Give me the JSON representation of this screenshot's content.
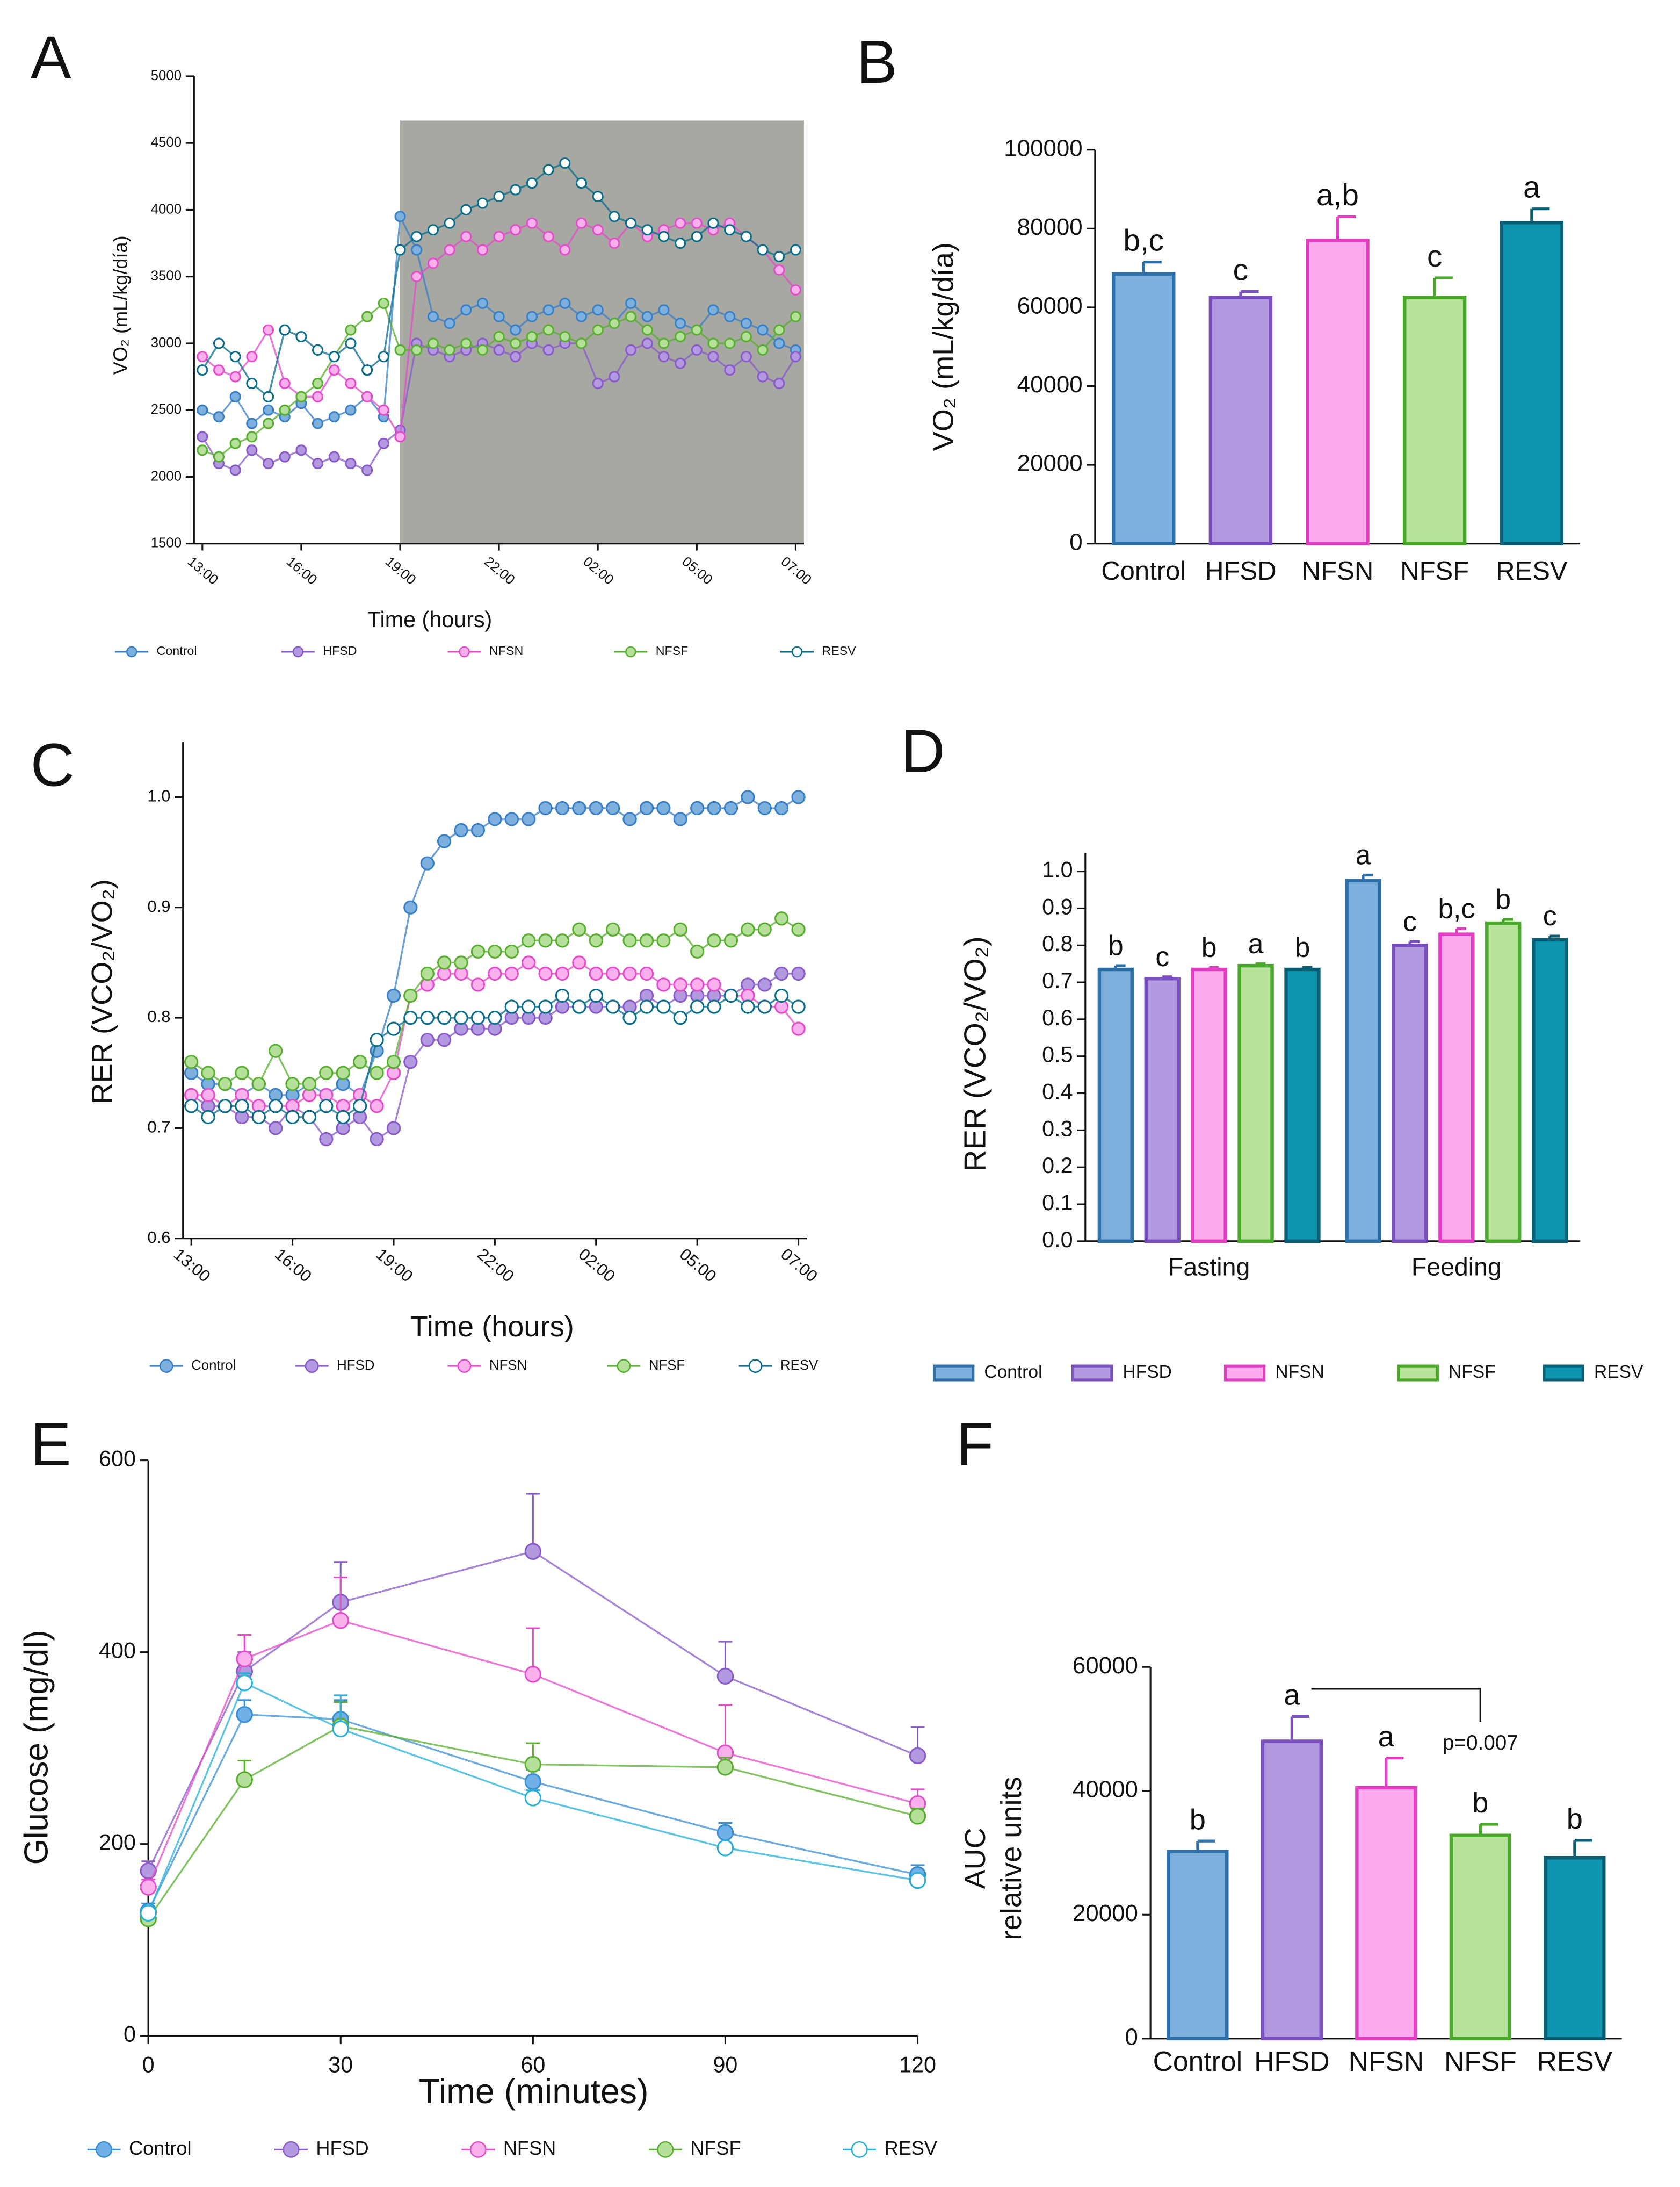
{
  "chart_data": [
    {
      "panel": "A",
      "type": "line",
      "ylabel": "VO₂ (mL/kg/día)",
      "xlabel": "Time (hours)",
      "categories": [
        "13:00",
        null,
        null,
        null,
        null,
        null,
        "16:00",
        null,
        null,
        null,
        null,
        null,
        "19:00",
        null,
        null,
        null,
        null,
        null,
        "22:00",
        null,
        null,
        null,
        null,
        null,
        "02:00",
        null,
        null,
        null,
        null,
        null,
        "05:00",
        null,
        null,
        null,
        null,
        null,
        "07:00"
      ],
      "ylim": [
        1500,
        5000
      ],
      "yticks": [
        1500,
        2000,
        2500,
        3000,
        3500,
        4000,
        4500,
        5000
      ],
      "shade_color": "#a8a8a3",
      "series": [
        {
          "name": "Control",
          "color": "#3b7fc4",
          "fill": "#7eb0de",
          "values": [
            2500,
            2450,
            2600,
            2400,
            2500,
            2450,
            2550,
            2400,
            2450,
            2500,
            2600,
            2450,
            3950,
            3700,
            3200,
            3150,
            3250,
            3300,
            3200,
            3100,
            3200,
            3250,
            3300,
            3200,
            3250,
            3150,
            3300,
            3200,
            3250,
            3150,
            3100,
            3250,
            3200,
            3150,
            3100,
            3000,
            2950
          ]
        },
        {
          "name": "HFSD",
          "color": "#8a5cc8",
          "fill": "#b39ae0",
          "values": [
            2300,
            2100,
            2050,
            2200,
            2100,
            2150,
            2200,
            2100,
            2150,
            2100,
            2050,
            2250,
            2350,
            3000,
            2950,
            2900,
            2950,
            3000,
            2950,
            2900,
            3000,
            2950,
            3000,
            3000,
            2700,
            2750,
            2950,
            3000,
            2900,
            2850,
            2950,
            2900,
            2800,
            2900,
            2750,
            2700,
            2900
          ]
        },
        {
          "name": "NFSN",
          "color": "#e24fc8",
          "fill": "#fbb0ee",
          "values": [
            2900,
            2800,
            2750,
            2900,
            3100,
            2700,
            2600,
            2600,
            2800,
            2700,
            2600,
            2500,
            2300,
            3500,
            3600,
            3700,
            3800,
            3700,
            3800,
            3850,
            3900,
            3800,
            3700,
            3900,
            3850,
            3750,
            3900,
            3800,
            3850,
            3900,
            3900,
            3850,
            3900,
            3800,
            3700,
            3550,
            3400
          ]
        },
        {
          "name": "NFSF",
          "color": "#5aae32",
          "fill": "#b5e09a",
          "values": [
            2200,
            2150,
            2250,
            2300,
            2400,
            2500,
            2600,
            2700,
            2900,
            3100,
            3200,
            3300,
            2950,
            2950,
            3000,
            2950,
            3000,
            2950,
            3050,
            3000,
            3050,
            3100,
            3050,
            3000,
            3100,
            3150,
            3200,
            3100,
            3000,
            3050,
            3100,
            3000,
            3000,
            3050,
            2950,
            3100,
            3200
          ]
        },
        {
          "name": "RESV",
          "color": "#0d6e8a",
          "fill": "#ffffff",
          "values": [
            2800,
            3000,
            2900,
            2700,
            2600,
            3100,
            3050,
            2950,
            2900,
            3000,
            2800,
            2900,
            3700,
            3800,
            3850,
            3900,
            4000,
            4050,
            4100,
            4150,
            4200,
            4300,
            4350,
            4200,
            4100,
            3950,
            3900,
            3850,
            3800,
            3750,
            3800,
            3900,
            3850,
            3800,
            3700,
            3650,
            3700
          ]
        }
      ]
    },
    {
      "panel": "B",
      "type": "bar",
      "ylabel": "VO₂ (mL/kg/día)",
      "categories": [
        "Control",
        "HFSD",
        "NFSN",
        "NFSF",
        "RESV"
      ],
      "values": [
        68500,
        62500,
        77000,
        62500,
        81500
      ],
      "errors": [
        3000,
        1500,
        6000,
        5000,
        3500
      ],
      "letters": [
        "b,c",
        "c",
        "a,b",
        "c",
        "a"
      ],
      "colors": [
        "#2e6fa8",
        "#7a4fbf",
        "#e040c0",
        "#4aa82a",
        "#0a5f75"
      ],
      "fills": [
        "#7eb0de",
        "#b39ae0",
        "#ffaaf0",
        "#b6e29a",
        "#0e94ae"
      ],
      "ylim": [
        0,
        100000
      ],
      "yticks": [
        0,
        20000,
        40000,
        60000,
        80000,
        100000
      ]
    },
    {
      "panel": "C",
      "type": "line",
      "ylabel": "RER (VCO₂/VO₂)",
      "xlabel": "Time (hours)",
      "categories": [
        "13:00",
        null,
        null,
        null,
        null,
        null,
        "16:00",
        null,
        null,
        null,
        null,
        null,
        "19:00",
        null,
        null,
        null,
        null,
        null,
        "22:00",
        null,
        null,
        null,
        null,
        null,
        "02:00",
        null,
        null,
        null,
        null,
        null,
        "05:00",
        null,
        null,
        null,
        null,
        null,
        "07:00"
      ],
      "ylim": [
        0.6,
        1.05
      ],
      "yticks": [
        0.6,
        0.7,
        0.8,
        0.9,
        {
          "value": 1,
          "label": "1.0"
        }
      ],
      "series": [
        {
          "name": "Control",
          "color": "#3b7fc4",
          "fill": "#7eb0de",
          "values": [
            0.75,
            0.74,
            0.74,
            0.73,
            0.74,
            0.73,
            0.73,
            0.74,
            0.73,
            0.74,
            0.73,
            0.77,
            0.82,
            0.9,
            0.94,
            0.96,
            0.97,
            0.97,
            0.98,
            0.98,
            0.98,
            0.99,
            0.99,
            0.99,
            0.99,
            0.99,
            0.98,
            0.99,
            0.99,
            0.98,
            0.99,
            0.99,
            0.99,
            1.0,
            0.99,
            0.99,
            1.0
          ]
        },
        {
          "name": "HFSD",
          "color": "#8a5cc8",
          "fill": "#b39ae0",
          "values": [
            0.73,
            0.72,
            0.72,
            0.71,
            0.71,
            0.7,
            0.72,
            0.71,
            0.69,
            0.7,
            0.71,
            0.69,
            0.7,
            0.76,
            0.78,
            0.78,
            0.79,
            0.79,
            0.79,
            0.8,
            0.8,
            0.8,
            0.81,
            0.81,
            0.81,
            0.81,
            0.81,
            0.82,
            0.81,
            0.82,
            0.82,
            0.82,
            0.82,
            0.83,
            0.83,
            0.84,
            0.84
          ]
        },
        {
          "name": "NFSN",
          "color": "#e24fc8",
          "fill": "#fbb0ee",
          "values": [
            0.73,
            0.73,
            0.72,
            0.73,
            0.72,
            0.72,
            0.72,
            0.73,
            0.73,
            0.72,
            0.73,
            0.72,
            0.75,
            0.82,
            0.83,
            0.84,
            0.84,
            0.83,
            0.84,
            0.84,
            0.85,
            0.84,
            0.84,
            0.85,
            0.84,
            0.84,
            0.84,
            0.84,
            0.83,
            0.83,
            0.83,
            0.83,
            0.82,
            0.82,
            0.81,
            0.81,
            0.79
          ]
        },
        {
          "name": "NFSF",
          "color": "#5aae32",
          "fill": "#b5e09a",
          "values": [
            0.76,
            0.75,
            0.74,
            0.75,
            0.74,
            0.77,
            0.74,
            0.74,
            0.75,
            0.75,
            0.76,
            0.75,
            0.76,
            0.82,
            0.84,
            0.85,
            0.85,
            0.86,
            0.86,
            0.86,
            0.87,
            0.87,
            0.87,
            0.88,
            0.87,
            0.88,
            0.87,
            0.87,
            0.87,
            0.88,
            0.86,
            0.87,
            0.87,
            0.88,
            0.88,
            0.89,
            0.88
          ]
        },
        {
          "name": "RESV",
          "color": "#0d6e8a",
          "fill": "#ffffff",
          "values": [
            0.72,
            0.71,
            0.72,
            0.72,
            0.71,
            0.72,
            0.71,
            0.71,
            0.72,
            0.71,
            0.72,
            0.78,
            0.79,
            0.8,
            0.8,
            0.8,
            0.8,
            0.8,
            0.8,
            0.81,
            0.81,
            0.81,
            0.82,
            0.81,
            0.82,
            0.81,
            0.8,
            0.81,
            0.81,
            0.8,
            0.81,
            0.81,
            0.82,
            0.81,
            0.81,
            0.82,
            0.81
          ]
        }
      ]
    },
    {
      "panel": "D",
      "type": "bar",
      "ylabel": "RER (VCO₂/VO₂)",
      "categories": [
        "Fasting",
        "Feeding"
      ],
      "ylim": [
        0,
        1.05
      ],
      "yticks": [
        {
          "value": 0,
          "label": "0.0"
        },
        0.1,
        0.2,
        0.3,
        0.4,
        0.5,
        0.6,
        0.7,
        0.8,
        0.9,
        {
          "value": 1,
          "label": "1.0"
        }
      ],
      "series": [
        {
          "name": "Control",
          "color": "#2e6fa8",
          "fill": "#7eb0de",
          "values": [
            0.735,
            0.975
          ],
          "errors": [
            0.01,
            0.015
          ],
          "letters": [
            "b",
            "a"
          ]
        },
        {
          "name": "HFSD",
          "color": "#7a4fbf",
          "fill": "#b39ae0",
          "values": [
            0.71,
            0.8
          ],
          "errors": [
            0.005,
            0.01
          ],
          "letters": [
            "c",
            "c"
          ]
        },
        {
          "name": "NFSN",
          "color": "#e040c0",
          "fill": "#ffaaf0",
          "values": [
            0.735,
            0.83
          ],
          "errors": [
            0.005,
            0.015
          ],
          "letters": [
            "b",
            "b,c"
          ]
        },
        {
          "name": "NFSF",
          "color": "#4aa82a",
          "fill": "#b6e29a",
          "values": [
            0.745,
            0.86
          ],
          "errors": [
            0.005,
            0.01
          ],
          "letters": [
            "a",
            "b"
          ]
        },
        {
          "name": "RESV",
          "color": "#0a5f75",
          "fill": "#0e94ae",
          "values": [
            0.735,
            0.815
          ],
          "errors": [
            0.005,
            0.01
          ],
          "letters": [
            "b",
            "c"
          ]
        }
      ]
    },
    {
      "panel": "E",
      "type": "line",
      "ylabel": "Glucose (mg/dl)",
      "xlabel": "Time (minutes)",
      "x": [
        0,
        15,
        30,
        60,
        90,
        120
      ],
      "xlim": [
        0,
        120
      ],
      "xticks": [
        0,
        30,
        60,
        90,
        120
      ],
      "ylim": [
        0,
        600
      ],
      "yticks": [
        0,
        200,
        400,
        600
      ],
      "series": [
        {
          "name": "Control",
          "color": "#3b8fd0",
          "fill": "#6fb0e8",
          "values": [
            130,
            335,
            330,
            265,
            212,
            168
          ],
          "errors": [
            8,
            15,
            20,
            12,
            10,
            10
          ]
        },
        {
          "name": "HFSD",
          "color": "#8a5cc8",
          "fill": "#b39ae0",
          "values": [
            172,
            380,
            452,
            505,
            375,
            292
          ],
          "errors": [
            10,
            20,
            42,
            60,
            36,
            30
          ]
        },
        {
          "name": "NFSN",
          "color": "#e24fc8",
          "fill": "#fbb0ee",
          "values": [
            155,
            393,
            433,
            377,
            295,
            242
          ],
          "errors": [
            8,
            25,
            45,
            48,
            50,
            15
          ]
        },
        {
          "name": "NFSF",
          "color": "#5aae32",
          "fill": "#b5e09a",
          "values": [
            122,
            267,
            323,
            283,
            280,
            229
          ],
          "errors": [
            5,
            20,
            25,
            22,
            10,
            8
          ]
        },
        {
          "name": "RESV",
          "color": "#2ab0d8",
          "fill": "#ffffff",
          "values": [
            128,
            368,
            320,
            248,
            196,
            162
          ],
          "errors": [
            5,
            10,
            35,
            8,
            5,
            6
          ]
        }
      ]
    },
    {
      "panel": "F",
      "type": "bar",
      "ylabel": [
        "AUC",
        "relative units"
      ],
      "categories": [
        "Control",
        "HFSD",
        "NFSN",
        "NFSF",
        "RESV"
      ],
      "values": [
        30200,
        48000,
        40500,
        32800,
        29200
      ],
      "errors": [
        1700,
        4000,
        4800,
        1800,
        2800
      ],
      "letters": [
        "b",
        "a",
        "a",
        "b",
        "b"
      ],
      "colors": [
        "#2e6fa8",
        "#7a4fbf",
        "#e040c0",
        "#4aa82a",
        "#0a5f75"
      ],
      "fills": [
        "#7eb0de",
        "#b39ae0",
        "#ffaaf0",
        "#b6e29a",
        "#0e94ae"
      ],
      "ylim": [
        0,
        60000
      ],
      "yticks": [
        0,
        20000,
        40000,
        60000
      ],
      "bracket": {
        "from": "HFSD",
        "to": "NFSF",
        "label": "p=0.007"
      }
    }
  ]
}
